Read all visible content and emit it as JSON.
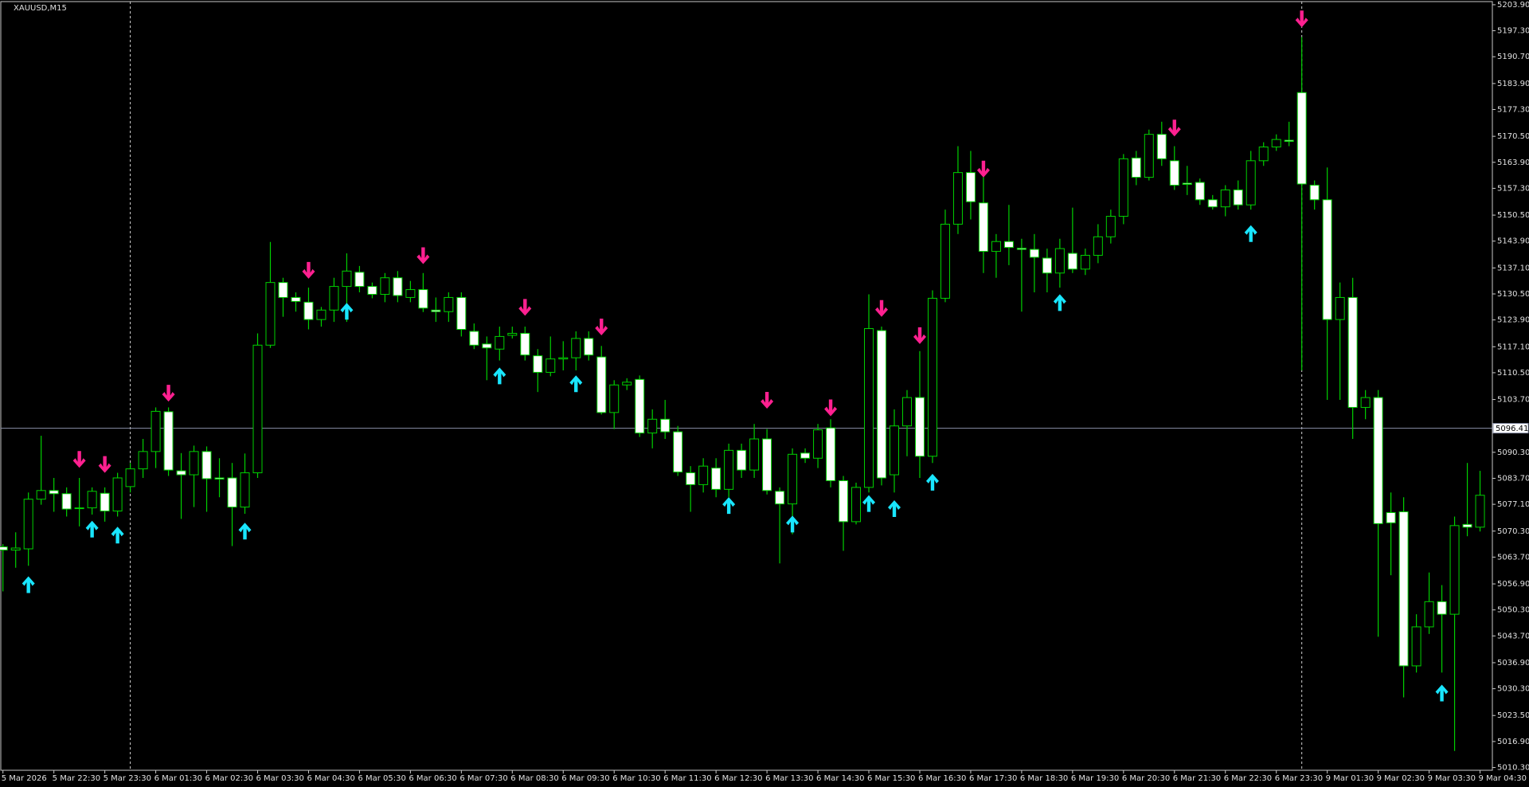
{
  "chart_data": {
    "type": "candlestick",
    "title": "XAUUSD,M15",
    "categories": [
      "5 Mar 2026",
      null,
      null,
      null,
      "5 Mar 22:30",
      null,
      null,
      null,
      "5 Mar 23:30",
      null,
      null,
      null,
      "6 Mar 01:30",
      null,
      null,
      null,
      "6 Mar 02:30",
      null,
      null,
      null,
      "6 Mar 03:30",
      null,
      null,
      null,
      "6 Mar 04:30",
      null,
      null,
      null,
      "6 Mar 05:30",
      null,
      null,
      null,
      "6 Mar 06:30",
      null,
      null,
      null,
      "6 Mar 07:30",
      null,
      null,
      null,
      "6 Mar 08:30",
      null,
      null,
      null,
      "6 Mar 09:30",
      null,
      null,
      null,
      "6 Mar 10:30",
      null,
      null,
      null,
      "6 Mar 11:30",
      null,
      null,
      null,
      "6 Mar 12:30",
      null,
      null,
      null,
      "6 Mar 13:30",
      null,
      null,
      null,
      "6 Mar 14:30",
      null,
      null,
      null,
      "6 Mar 15:30",
      null,
      null,
      null,
      "6 Mar 16:30",
      null,
      null,
      null,
      "6 Mar 17:30",
      null,
      null,
      null,
      "6 Mar 18:30",
      null,
      null,
      null,
      "6 Mar 19:30",
      null,
      null,
      null,
      "6 Mar 20:30",
      null,
      null,
      null,
      "6 Mar 21:30",
      null,
      null,
      null,
      "6 Mar 22:30",
      null,
      null,
      null,
      "6 Mar 23:30",
      null,
      null,
      null,
      "9 Mar 01:30",
      null,
      null,
      null,
      "9 Mar 02:30",
      null,
      null,
      null,
      "9 Mar 03:30",
      null,
      null,
      null,
      "9 Mar 04:30"
    ],
    "open": [
      5066.3,
      5065.5,
      5065.8,
      5078.4,
      5080.6,
      5079.8,
      5076,
      5076.2,
      5079.9,
      5075.4,
      5081.6,
      5086.1,
      5090.5,
      5100.6,
      5085.6,
      5084.6,
      5090.5,
      5083.8,
      5083.8,
      5076.4,
      5085.1,
      5117.5,
      5133.4,
      5129.6,
      5128.4,
      5124,
      5126.4,
      5132.4,
      5136,
      5132.4,
      5130.4,
      5134.6,
      5129.6,
      5131.6,
      5126.4,
      5126,
      5129.6,
      5121,
      5117.8,
      5116.5,
      5120,
      5120.5,
      5114.8,
      5110.6,
      5114,
      5114.3,
      5119.2,
      5114.5,
      5100.4,
      5107.4,
      5108.8,
      5095.2,
      5098.7,
      5095.5,
      5085.1,
      5082.1,
      5086.3,
      5080.9,
      5090.8,
      5085.8,
      5093.7,
      5080.4,
      5077.2,
      5090.1,
      5088.8,
      5096.5,
      5083.1,
      5072.7,
      5081.4,
      5121.2,
      5084.6,
      5097,
      5104.2,
      5089.3,
      5129.4,
      5148.2,
      5161.3,
      5153.6,
      5141.3,
      5143.8,
      5142.1,
      5141.8,
      5139.6,
      5135.8,
      5140.8,
      5136.8,
      5140.3,
      5145,
      5150.2,
      5165,
      5160.1,
      5171,
      5164.3,
      5158.6,
      5158.8,
      5154.4,
      5152.6,
      5156.9,
      5153.1,
      5164.3,
      5167.8,
      5169.5,
      5181.6,
      5158.1,
      5154.4,
      5124,
      5129.6,
      5101.7,
      5104.2,
      5075,
      5075.2,
      5036.1,
      5046,
      5052.4,
      5049.2,
      5072,
      5071.3
    ],
    "high": [
      5067,
      5070,
      5080.1,
      5094.5,
      5083.8,
      5081.4,
      5083.8,
      5081.4,
      5081.4,
      5085.1,
      5087.6,
      5093.7,
      5101.7,
      5101.7,
      5090.1,
      5092,
      5091.8,
      5088.8,
      5087.6,
      5090,
      5120.5,
      5143.7,
      5134.6,
      5130.9,
      5132.1,
      5127.2,
      5134.6,
      5140.8,
      5137.6,
      5133.4,
      5135.8,
      5136.3,
      5133.8,
      5135.8,
      5129.6,
      5130.9,
      5130.9,
      5123,
      5119.7,
      5122.2,
      5122.2,
      5122.2,
      5116.5,
      5119.7,
      5118.5,
      5121,
      5121,
      5117.3,
      5108.6,
      5109.1,
      5109.8,
      5101.2,
      5103.6,
      5097,
      5086.8,
      5088.8,
      5088.8,
      5092.5,
      5092.5,
      5097.5,
      5096.2,
      5081.4,
      5091.3,
      5091.3,
      5097.5,
      5098.7,
      5084.3,
      5082.6,
      5130.4,
      5122.2,
      5101.2,
      5106.1,
      5116,
      5131.4,
      5151.9,
      5168,
      5166.8,
      5160.6,
      5145.7,
      5153.1,
      5144.5,
      5145.7,
      5142,
      5144.5,
      5152.4,
      5142,
      5148.2,
      5151.9,
      5166,
      5166.8,
      5172.2,
      5174.2,
      5168,
      5163,
      5159.8,
      5155.6,
      5158.1,
      5159.3,
      5166.8,
      5169,
      5171,
      5174.2,
      5195.7,
      5159.3,
      5162.6,
      5133.4,
      5134.6,
      5106.1,
      5106.1,
      5080.1,
      5078.9,
      5049.2,
      5059.8,
      5056.6,
      5074,
      5087.6,
      5085.6
    ],
    "low": [
      5055,
      5061,
      5061.5,
      5077,
      5075.2,
      5074,
      5071.5,
      5074.5,
      5072.7,
      5074,
      5080.1,
      5083.8,
      5086.3,
      5084.3,
      5073.4,
      5076.4,
      5075.2,
      5078.9,
      5066.5,
      5074.7,
      5083.8,
      5116.8,
      5124.7,
      5126,
      5121.5,
      5122.2,
      5123.4,
      5123.4,
      5130.9,
      5129.4,
      5128.4,
      5128.4,
      5128.4,
      5125.9,
      5123.4,
      5123.4,
      5119.7,
      5116.5,
      5108.6,
      5113.6,
      5119.2,
      5113.6,
      5105.6,
      5109.6,
      5111.1,
      5111.1,
      5113.6,
      5099.9,
      5096.2,
      5106.1,
      5094.2,
      5091.3,
      5093.7,
      5084.3,
      5075.2,
      5080.1,
      5078.9,
      5078.9,
      5083.8,
      5083.8,
      5079.6,
      5062.1,
      5069.5,
      5087.6,
      5086.3,
      5081.4,
      5065.3,
      5072,
      5080.1,
      5081.9,
      5080.1,
      5089.3,
      5083.8,
      5087.6,
      5128.4,
      5145.7,
      5149.4,
      5135.8,
      5134.6,
      5137.8,
      5126,
      5130.9,
      5130.9,
      5132.1,
      5135.8,
      5135.3,
      5138.3,
      5143.3,
      5148.2,
      5158.1,
      5159.3,
      5163,
      5156.9,
      5155.6,
      5153.1,
      5151.9,
      5150.2,
      5151.9,
      5151.9,
      5163,
      5166.8,
      5168,
      5111.1,
      5151.9,
      5103.6,
      5103.6,
      5093.7,
      5098.7,
      5043.5,
      5059.1,
      5028.1,
      5034.4,
      5044.2,
      5034.4,
      5014.5,
      5069,
      5070.2
    ],
    "close": [
      5065.5,
      5066,
      5078.4,
      5080.6,
      5079.8,
      5075.9,
      5076.2,
      5080.4,
      5075.4,
      5083.8,
      5086.1,
      5090.5,
      5100.7,
      5085.8,
      5084.6,
      5090.5,
      5083.6,
      5083.5,
      5076.4,
      5085.1,
      5117.5,
      5133.4,
      5129.6,
      5128.6,
      5124,
      5126.4,
      5132.4,
      5136.3,
      5132.4,
      5130.4,
      5134.6,
      5130.1,
      5131.6,
      5126.9,
      5126,
      5129.6,
      5121.5,
      5117.5,
      5116.8,
      5119.7,
      5120.5,
      5115,
      5110.6,
      5114,
      5114.3,
      5119.2,
      5115,
      5100.4,
      5107.4,
      5108.1,
      5095.2,
      5098.7,
      5095.5,
      5085.3,
      5082.1,
      5086.8,
      5080.9,
      5090.8,
      5085.8,
      5093.7,
      5080.6,
      5077.2,
      5089.8,
      5088.8,
      5096,
      5083.1,
      5072.7,
      5081.4,
      5121.7,
      5083.8,
      5097,
      5104.2,
      5089.3,
      5129.4,
      5148.2,
      5161.3,
      5153.9,
      5141.3,
      5143.8,
      5142.3,
      5141.8,
      5139.8,
      5135.8,
      5142,
      5136.8,
      5140.3,
      5145,
      5150.2,
      5164.8,
      5160.1,
      5171,
      5164.8,
      5158.1,
      5158.3,
      5154.4,
      5152.6,
      5156.9,
      5153.1,
      5164.3,
      5167.8,
      5169.7,
      5169.2,
      5158.4,
      5154.4,
      5124,
      5129.6,
      5101.7,
      5104.2,
      5072.2,
      5072.4,
      5036.1,
      5046,
      5052.4,
      5049.2,
      5071.7,
      5071.3,
      5079.4
    ],
    "up_color": "#00d000",
    "down_color": "#ffffff",
    "buy_color": "#19e6ff",
    "sell_color": "#ff2090",
    "buy_signals": [
      {
        "candle": 2,
        "price": 5056.6
      },
      {
        "candle": 7,
        "price": 5070.7
      },
      {
        "candle": 9,
        "price": 5069.2
      },
      {
        "candle": 19,
        "price": 5070.2
      },
      {
        "candle": 27,
        "price": 5126
      },
      {
        "candle": 39,
        "price": 5109.6
      },
      {
        "candle": 45,
        "price": 5107.6
      },
      {
        "candle": 57,
        "price": 5076.7
      },
      {
        "candle": 62,
        "price": 5072
      },
      {
        "candle": 68,
        "price": 5077.2
      },
      {
        "candle": 70,
        "price": 5075.9
      },
      {
        "candle": 73,
        "price": 5082.6
      },
      {
        "candle": 83,
        "price": 5128.2
      },
      {
        "candle": 98,
        "price": 5145.7
      },
      {
        "candle": 113,
        "price": 5029.1
      }
    ],
    "sell_signals": [
      {
        "candle": 6,
        "price": 5088.6
      },
      {
        "candle": 8,
        "price": 5087.3
      },
      {
        "candle": 13,
        "price": 5105.4
      },
      {
        "candle": 24,
        "price": 5136.6
      },
      {
        "candle": 33,
        "price": 5140.3
      },
      {
        "candle": 41,
        "price": 5127.2
      },
      {
        "candle": 47,
        "price": 5122.2
      },
      {
        "candle": 60,
        "price": 5103.6
      },
      {
        "candle": 65,
        "price": 5101.7
      },
      {
        "candle": 69,
        "price": 5126.9
      },
      {
        "candle": 72,
        "price": 5120
      },
      {
        "candle": 77,
        "price": 5162.3
      },
      {
        "candle": 92,
        "price": 5172.7
      },
      {
        "candle": 102,
        "price": 5200.4
      }
    ],
    "bid": {
      "value": 5096.41,
      "label": "5096.41"
    },
    "ylim": [
      5009.6,
      5205.1
    ],
    "yticks": [
      {
        "value": 5203.9,
        "label": "5203.90"
      },
      {
        "value": 5197.3,
        "label": "5197.30"
      },
      {
        "value": 5190.7,
        "label": "5190.70"
      },
      {
        "value": 5183.9,
        "label": "5183.90"
      },
      {
        "value": 5177.3,
        "label": "5177.30"
      },
      {
        "value": 5170.5,
        "label": "5170.50"
      },
      {
        "value": 5163.9,
        "label": "5163.90"
      },
      {
        "value": 5157.3,
        "label": "5157.30"
      },
      {
        "value": 5150.5,
        "label": "5150.50"
      },
      {
        "value": 5143.9,
        "label": "5143.90"
      },
      {
        "value": 5137.1,
        "label": "5137.10"
      },
      {
        "value": 5130.5,
        "label": "5130.50"
      },
      {
        "value": 5123.9,
        "label": "5123.90"
      },
      {
        "value": 5117.1,
        "label": "5117.10"
      },
      {
        "value": 5110.5,
        "label": "5110.50"
      },
      {
        "value": 5103.7,
        "label": "5103.70"
      },
      {
        "value": 5090.3,
        "label": "5090.30"
      },
      {
        "value": 5083.7,
        "label": "5083.70"
      },
      {
        "value": 5077.1,
        "label": "5077.10"
      },
      {
        "value": 5070.3,
        "label": "5070.30"
      },
      {
        "value": 5063.7,
        "label": "5063.70"
      },
      {
        "value": 5056.9,
        "label": "5056.90"
      },
      {
        "value": 5050.3,
        "label": "5050.30"
      },
      {
        "value": 5043.7,
        "label": "5043.70"
      },
      {
        "value": 5036.9,
        "label": "5036.90"
      },
      {
        "value": 5030.3,
        "label": "5030.30"
      },
      {
        "value": 5023.5,
        "label": "5023.50"
      },
      {
        "value": 5016.9,
        "label": "5016.90"
      },
      {
        "value": 5010.3,
        "label": "5010.30"
      }
    ]
  }
}
